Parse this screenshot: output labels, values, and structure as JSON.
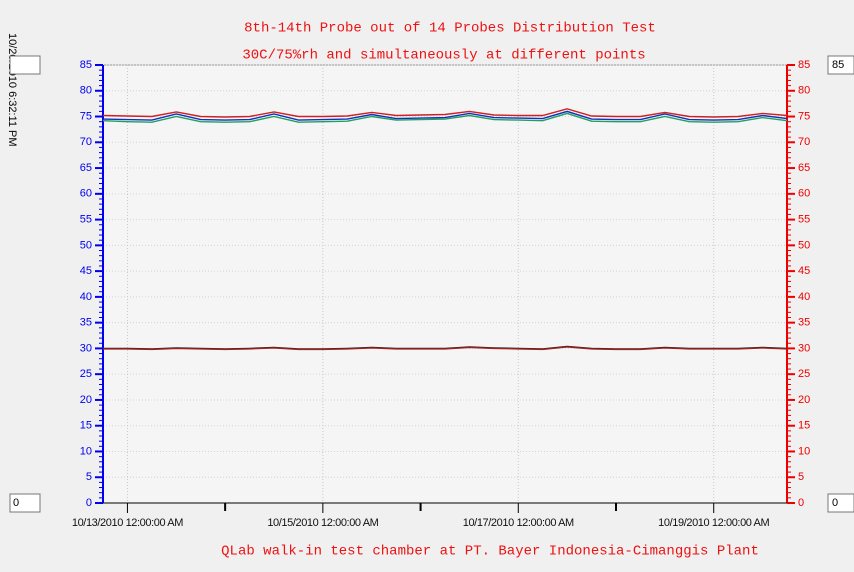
{
  "chart_data": {
    "type": "line",
    "title": "8th-14th Probe out of 14 Probes Distribution Test",
    "subtitle": "30C/75%rh and simultaneously at different points",
    "caption": "QLab walk-in test chamber at PT. Bayer Indonesia-Cimanggis Plant",
    "timestamp": "10/20/2010 6:32:11 PM",
    "inputs": {
      "right_max": "85",
      "left_min": "0",
      "right_min": "0"
    },
    "x": [
      "10/12/2010 6:00:00 PM",
      "10/13/2010 12:00:00 AM",
      "10/13/2010 6:00:00 AM",
      "10/13/2010 12:00:00 PM",
      "10/13/2010 6:00:00 PM",
      "10/14/2010 12:00:00 AM",
      "10/14/2010 6:00:00 AM",
      "10/14/2010 12:00:00 PM",
      "10/14/2010 6:00:00 PM",
      "10/15/2010 12:00:00 AM",
      "10/15/2010 6:00:00 AM",
      "10/15/2010 12:00:00 PM",
      "10/15/2010 6:00:00 PM",
      "10/16/2010 12:00:00 AM",
      "10/16/2010 6:00:00 AM",
      "10/16/2010 12:00:00 PM",
      "10/16/2010 6:00:00 PM",
      "10/17/2010 12:00:00 AM",
      "10/17/2010 6:00:00 AM",
      "10/17/2010 12:00:00 PM",
      "10/17/2010 6:00:00 PM",
      "10/18/2010 12:00:00 AM",
      "10/18/2010 6:00:00 AM",
      "10/18/2010 12:00:00 PM",
      "10/18/2010 6:00:00 PM",
      "10/19/2010 12:00:00 AM",
      "10/19/2010 6:00:00 AM",
      "10/19/2010 12:00:00 PM",
      "10/19/2010 6:00:00 PM"
    ],
    "xlim": [
      "10/12/2010 6:00:00 PM",
      "10/19/2010 6:00:00 PM"
    ],
    "xticks": [
      "10/13/2010 12:00:00 AM",
      "10/15/2010 12:00:00 AM",
      "10/17/2010 12:00:00 AM",
      "10/19/2010 12:00:00 AM"
    ],
    "ylim": [
      0,
      85
    ],
    "yticks": [
      0,
      5,
      10,
      15,
      20,
      25,
      30,
      35,
      40,
      45,
      50,
      55,
      60,
      65,
      70,
      75,
      80,
      85
    ],
    "y2lim": [
      0,
      85
    ],
    "y2ticks": [
      0,
      5,
      10,
      15,
      20,
      25,
      30,
      35,
      40,
      45,
      50,
      55,
      60,
      65,
      70,
      75,
      80,
      85
    ],
    "y_color": "#0000ee",
    "y2_color": "#ee0000",
    "grid": true,
    "series": [
      {
        "color": "#d02020",
        "values": [
          75.2,
          75.1,
          75,
          75.9,
          75,
          74.9,
          75,
          75.9,
          75,
          75,
          75.1,
          75.8,
          75.2,
          75.3,
          75.4,
          76,
          75.3,
          75.2,
          75.2,
          76.5,
          75.1,
          75,
          75,
          75.8,
          75,
          74.9,
          75,
          75.6,
          75.2
        ]
      },
      {
        "color": "#1030c0",
        "values": [
          74.5,
          74.4,
          74.3,
          75.5,
          74.4,
          74.3,
          74.4,
          75.5,
          74.3,
          74.4,
          74.5,
          75.4,
          74.6,
          74.7,
          74.8,
          75.6,
          74.8,
          74.7,
          74.6,
          76,
          74.5,
          74.4,
          74.4,
          75.5,
          74.4,
          74.3,
          74.4,
          75.2,
          74.6
        ]
      },
      {
        "color": "#20a060",
        "values": [
          74.2,
          74,
          73.9,
          75,
          74,
          73.9,
          74,
          75,
          73.9,
          74,
          74.1,
          75,
          74.3,
          74.4,
          74.5,
          75.2,
          74.4,
          74.3,
          74.2,
          75.6,
          74.1,
          74,
          74,
          75,
          74,
          73.9,
          74,
          74.8,
          74.2
        ]
      },
      {
        "color": "#202020",
        "values": [
          30,
          30,
          29.9,
          30.1,
          30,
          29.9,
          30,
          30.2,
          29.9,
          29.9,
          30,
          30.2,
          30,
          30,
          30,
          30.3,
          30.1,
          30,
          29.9,
          30.4,
          30,
          29.9,
          29.9,
          30.2,
          30,
          30,
          30,
          30.2,
          30
        ]
      },
      {
        "color": "#a02020",
        "values": [
          29.9,
          29.9,
          29.8,
          30,
          29.9,
          29.8,
          29.9,
          30.1,
          29.8,
          29.8,
          29.9,
          30.1,
          29.9,
          29.9,
          29.9,
          30.2,
          30,
          29.9,
          29.8,
          30.3,
          29.9,
          29.8,
          29.8,
          30.1,
          29.9,
          29.9,
          29.9,
          30.1,
          29.9
        ]
      }
    ]
  }
}
